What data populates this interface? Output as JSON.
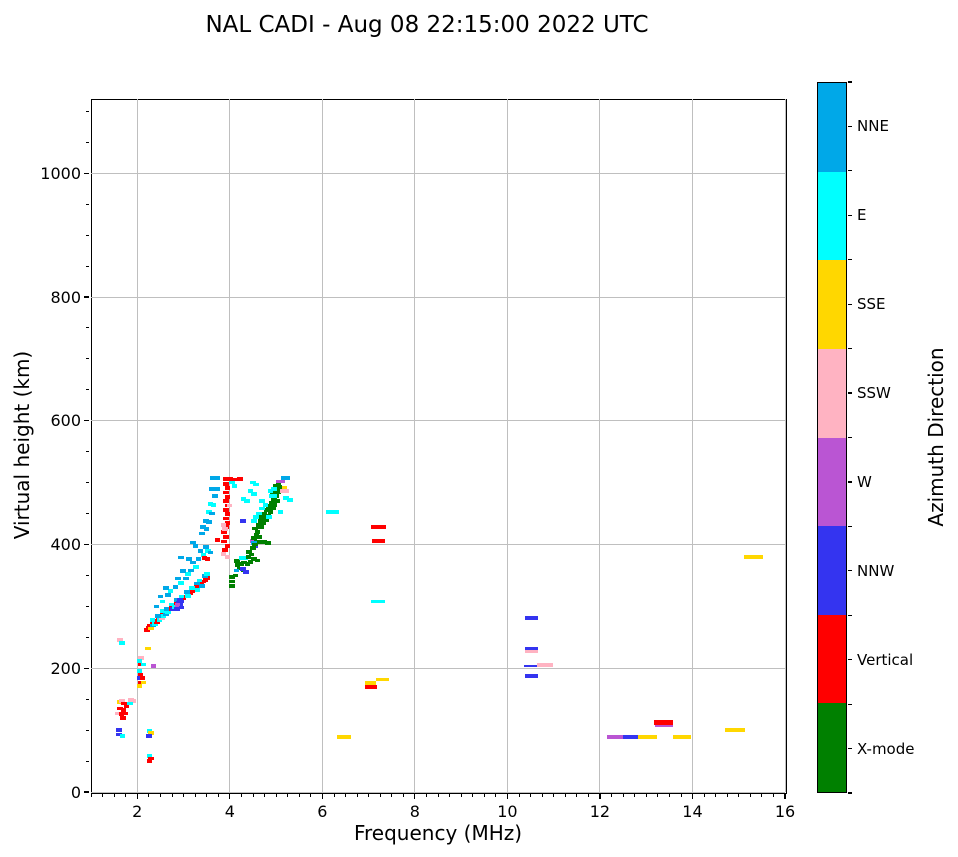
{
  "title": "NAL CADI - Aug 08 22:15:00 2022 UTC",
  "chart_data": {
    "type": "scatter",
    "title": "NAL CADI - Aug 08 22:15:00 2022 UTC",
    "xlabel": "Frequency (MHz)",
    "ylabel": "Virtual height (km)",
    "xlim": [
      1,
      16
    ],
    "ylim": [
      0,
      1120
    ],
    "xticks": [
      2,
      4,
      6,
      8,
      10,
      12,
      14,
      16
    ],
    "yticks": [
      0,
      200,
      400,
      600,
      800,
      1000
    ],
    "x_minor_step": 0.25,
    "y_minor_step": 50,
    "grid": true,
    "legend_position": "right-colorbar",
    "colorbar": {
      "label": "Azimuth Direction",
      "categories": [
        {
          "label": "NNE",
          "color": "#00A8E8"
        },
        {
          "label": "E",
          "color": "#00FFFF"
        },
        {
          "label": "SSE",
          "color": "#FFD700"
        },
        {
          "label": "SSW",
          "color": "#FFB3C2"
        },
        {
          "label": "W",
          "color": "#BA55D3"
        },
        {
          "label": "NNW",
          "color": "#3434F0"
        },
        {
          "label": "Vertical",
          "color": "#FF0000"
        },
        {
          "label": "X-mode",
          "color": "#008000"
        }
      ]
    },
    "marker": {
      "default_width_mhz": 0.12,
      "default_height_km": 6
    },
    "point_format": "[freq_MHz, virtual_height_km, category_index, optional_width_MHz, optional_height_km]",
    "points": [
      [
        1.63,
        246,
        3
      ],
      [
        1.67,
        241,
        1
      ],
      [
        1.6,
        100,
        5
      ],
      [
        1.6,
        93,
        5
      ],
      [
        1.68,
        91,
        1
      ],
      [
        2.08,
        217,
        3
      ],
      [
        2.35,
        204,
        4
      ],
      [
        2.23,
        232,
        2
      ],
      [
        2.05,
        212,
        1
      ],
      [
        2.07,
        206,
        6
      ],
      [
        2.13,
        206,
        1
      ],
      [
        2.05,
        196,
        1
      ],
      [
        2.07,
        190,
        6
      ],
      [
        2.05,
        184,
        5
      ],
      [
        2.11,
        184,
        6
      ],
      [
        2.07,
        177,
        6
      ],
      [
        2.13,
        177,
        2
      ],
      [
        2.05,
        171,
        2
      ],
      [
        1.86,
        149,
        3
      ],
      [
        1.92,
        147,
        3
      ],
      [
        1.62,
        145,
        2
      ],
      [
        1.67,
        147,
        3
      ],
      [
        1.71,
        143,
        6
      ],
      [
        1.77,
        139,
        6
      ],
      [
        1.84,
        143,
        1
      ],
      [
        1.63,
        135,
        6
      ],
      [
        1.7,
        132,
        6
      ],
      [
        1.58,
        127,
        3
      ],
      [
        1.66,
        126,
        6
      ],
      [
        1.73,
        127,
        6
      ],
      [
        1.69,
        120,
        6
      ],
      [
        2.26,
        99,
        1
      ],
      [
        2.3,
        95,
        2
      ],
      [
        2.25,
        91,
        5
      ],
      [
        2.26,
        58,
        1
      ],
      [
        2.26,
        50,
        6
      ],
      [
        2.3,
        54,
        6
      ],
      [
        2.21,
        262,
        6
      ],
      [
        2.24,
        266,
        6
      ],
      [
        2.28,
        268,
        6
      ],
      [
        2.33,
        271,
        6
      ],
      [
        2.3,
        264,
        2
      ],
      [
        2.37,
        274,
        6
      ],
      [
        2.34,
        269,
        0
      ],
      [
        2.42,
        277,
        6
      ],
      [
        2.38,
        272,
        1
      ],
      [
        2.47,
        280,
        6
      ],
      [
        2.43,
        275,
        6
      ],
      [
        2.52,
        283,
        6
      ],
      [
        2.48,
        278,
        1
      ],
      [
        2.56,
        286,
        6
      ],
      [
        2.53,
        281,
        3
      ],
      [
        2.61,
        289,
        6
      ],
      [
        2.57,
        284,
        1
      ],
      [
        2.66,
        292,
        6
      ],
      [
        2.62,
        287,
        0
      ],
      [
        2.71,
        295,
        6
      ],
      [
        2.75,
        298,
        6
      ],
      [
        2.67,
        290,
        1
      ],
      [
        2.8,
        301,
        6
      ],
      [
        2.76,
        296,
        5
      ],
      [
        2.85,
        304,
        6
      ],
      [
        2.9,
        307,
        6
      ],
      [
        2.81,
        299,
        1
      ],
      [
        2.95,
        310,
        6
      ],
      [
        3.0,
        313,
        6
      ],
      [
        2.91,
        302,
        0
      ],
      [
        3.05,
        316,
        6
      ],
      [
        3.09,
        319,
        6
      ],
      [
        3.14,
        322,
        6
      ],
      [
        3.1,
        317,
        1
      ],
      [
        3.19,
        325,
        6
      ],
      [
        3.24,
        328,
        6
      ],
      [
        3.28,
        331,
        6
      ],
      [
        3.33,
        334,
        6
      ],
      [
        3.38,
        337,
        6
      ],
      [
        3.42,
        340,
        6
      ],
      [
        3.3,
        327,
        1
      ],
      [
        3.47,
        343,
        6
      ],
      [
        3.52,
        346,
        6
      ],
      [
        3.4,
        333,
        0
      ],
      [
        2.33,
        278,
        1
      ],
      [
        2.45,
        284,
        0
      ],
      [
        2.56,
        292,
        1
      ],
      [
        2.63,
        296,
        0
      ],
      [
        2.74,
        303,
        1
      ],
      [
        2.85,
        310,
        0
      ],
      [
        2.96,
        316,
        1
      ],
      [
        3.07,
        323,
        0
      ],
      [
        3.18,
        330,
        1
      ],
      [
        3.29,
        337,
        0
      ],
      [
        3.35,
        342,
        1
      ],
      [
        3.46,
        349,
        0
      ],
      [
        3.51,
        352,
        1
      ],
      [
        2.86,
        296,
        5
      ],
      [
        2.9,
        299,
        5
      ],
      [
        2.93,
        302,
        5
      ],
      [
        2.89,
        305,
        5
      ],
      [
        2.95,
        308,
        5
      ],
      [
        2.92,
        311,
        5
      ],
      [
        2.87,
        302,
        4
      ],
      [
        2.96,
        298,
        5
      ],
      [
        2.42,
        300,
        0
      ],
      [
        2.55,
        308,
        1
      ],
      [
        2.5,
        316,
        0
      ],
      [
        2.66,
        318,
        0
      ],
      [
        2.72,
        325,
        1
      ],
      [
        2.62,
        330,
        0
      ],
      [
        2.83,
        331,
        0
      ],
      [
        2.94,
        338,
        1
      ],
      [
        2.88,
        345,
        0
      ],
      [
        3.05,
        345,
        0
      ],
      [
        3.1,
        352,
        1
      ],
      [
        2.99,
        357,
        0
      ],
      [
        3.16,
        358,
        0
      ],
      [
        3.27,
        364,
        1
      ],
      [
        3.21,
        371,
        0
      ],
      [
        3.32,
        377,
        0
      ],
      [
        3.43,
        383,
        1
      ],
      [
        3.37,
        390,
        0
      ],
      [
        3.48,
        396,
        0
      ],
      [
        3.2,
        403,
        0
      ],
      [
        3.26,
        398,
        0
      ],
      [
        3.53,
        390,
        1
      ],
      [
        3.58,
        387,
        0
      ],
      [
        2.95,
        379,
        0
      ],
      [
        3.12,
        376,
        0
      ],
      [
        3.73,
        407,
        6
      ],
      [
        3.45,
        378,
        6
      ],
      [
        3.52,
        376,
        6
      ],
      [
        3.62,
        490,
        0
      ],
      [
        3.72,
        490,
        0
      ],
      [
        3.58,
        466,
        1
      ],
      [
        3.65,
        464,
        1
      ],
      [
        3.55,
        452,
        1
      ],
      [
        3.62,
        450,
        0
      ],
      [
        3.48,
        438,
        0
      ],
      [
        3.55,
        436,
        0
      ],
      [
        3.42,
        428,
        0
      ],
      [
        3.5,
        425,
        0
      ],
      [
        3.68,
        478,
        0
      ],
      [
        3.4,
        418,
        0
      ],
      [
        3.64,
        508,
        0
      ],
      [
        3.72,
        508,
        0
      ],
      [
        3.92,
        506,
        6
      ],
      [
        4.0,
        506,
        6
      ],
      [
        4.12,
        505,
        6
      ],
      [
        4.22,
        506,
        6
      ],
      [
        3.92,
        498,
        6
      ],
      [
        3.95,
        491,
        6
      ],
      [
        3.92,
        484,
        6
      ],
      [
        3.95,
        477,
        6
      ],
      [
        3.92,
        470,
        6
      ],
      [
        3.95,
        463,
        6
      ],
      [
        3.92,
        456,
        6
      ],
      [
        3.95,
        449,
        6
      ],
      [
        3.92,
        442,
        6
      ],
      [
        3.95,
        435,
        6
      ],
      [
        3.92,
        428,
        6
      ],
      [
        3.88,
        420,
        6
      ],
      [
        3.92,
        412,
        6
      ],
      [
        3.88,
        405,
        6
      ],
      [
        3.95,
        398,
        6
      ],
      [
        3.9,
        391,
        6
      ],
      [
        3.99,
        463,
        3
      ],
      [
        3.86,
        432,
        3
      ],
      [
        3.9,
        425,
        3
      ],
      [
        3.86,
        385,
        3
      ],
      [
        3.95,
        380,
        3
      ],
      [
        4.05,
        500,
        1
      ],
      [
        4.1,
        494,
        1
      ],
      [
        4.3,
        473,
        1
      ],
      [
        4.37,
        470,
        1
      ],
      [
        4.05,
        333,
        7
      ],
      [
        4.05,
        340,
        7
      ],
      [
        4.05,
        347,
        7
      ],
      [
        4.12,
        350,
        7
      ],
      [
        4.17,
        367,
        7
      ],
      [
        4.24,
        369,
        7
      ],
      [
        4.31,
        371,
        7
      ],
      [
        4.38,
        368,
        7
      ],
      [
        4.22,
        361,
        7
      ],
      [
        4.3,
        358,
        7
      ],
      [
        4.45,
        372,
        7
      ],
      [
        4.15,
        373,
        7
      ],
      [
        4.14,
        358,
        0
      ],
      [
        4.28,
        360,
        5
      ],
      [
        4.35,
        356,
        5
      ],
      [
        4.25,
        378,
        1
      ],
      [
        4.33,
        378,
        1
      ],
      [
        4.52,
        376,
        7
      ],
      [
        4.6,
        374,
        7
      ],
      [
        4.4,
        380,
        7
      ],
      [
        4.47,
        384,
        7
      ],
      [
        4.42,
        388,
        7
      ],
      [
        4.49,
        406,
        4
      ],
      [
        4.58,
        404,
        7
      ],
      [
        4.66,
        404,
        7
      ],
      [
        4.74,
        404,
        7
      ],
      [
        4.82,
        402,
        7
      ],
      [
        4.52,
        402,
        0
      ],
      [
        4.54,
        398,
        5
      ],
      [
        4.28,
        438,
        5
      ],
      [
        4.5,
        394,
        7
      ],
      [
        4.55,
        400,
        7
      ],
      [
        4.52,
        410,
        7
      ],
      [
        4.58,
        415,
        7
      ],
      [
        4.63,
        412,
        7
      ],
      [
        4.6,
        420,
        7
      ],
      [
        4.55,
        426,
        7
      ],
      [
        4.62,
        432,
        7
      ],
      [
        4.68,
        428,
        7
      ],
      [
        4.66,
        438,
        7
      ],
      [
        4.73,
        434,
        7
      ],
      [
        4.7,
        444,
        7
      ],
      [
        4.78,
        440,
        7
      ],
      [
        4.75,
        450,
        7
      ],
      [
        4.83,
        446,
        7
      ],
      [
        4.8,
        456,
        7
      ],
      [
        4.88,
        452,
        7
      ],
      [
        4.85,
        462,
        7
      ],
      [
        4.93,
        458,
        7
      ],
      [
        4.9,
        468,
        7
      ],
      [
        4.97,
        464,
        7
      ],
      [
        4.95,
        474,
        7
      ],
      [
        5.02,
        470,
        7
      ],
      [
        5.0,
        478,
        7
      ],
      [
        4.93,
        482,
        7
      ],
      [
        5.05,
        484,
        7
      ],
      [
        4.98,
        488,
        7
      ],
      [
        5.07,
        490,
        7
      ],
      [
        5.0,
        494,
        7
      ],
      [
        5.05,
        498,
        7
      ],
      [
        4.57,
        444,
        1
      ],
      [
        4.63,
        450,
        1
      ],
      [
        4.7,
        458,
        1
      ],
      [
        4.52,
        438,
        1
      ],
      [
        4.77,
        464,
        1
      ],
      [
        4.7,
        470,
        1
      ],
      [
        4.52,
        482,
        1
      ],
      [
        4.45,
        486,
        1
      ],
      [
        4.57,
        497,
        1
      ],
      [
        4.5,
        500,
        1
      ],
      [
        4.9,
        478,
        1
      ],
      [
        4.97,
        478,
        1
      ],
      [
        5.1,
        453,
        1
      ],
      [
        4.85,
        445,
        1
      ],
      [
        5.22,
        475,
        1
      ],
      [
        5.3,
        472,
        1
      ],
      [
        5.05,
        502,
        4
      ],
      [
        5.13,
        502,
        4
      ],
      [
        5.16,
        508,
        0
      ],
      [
        5.24,
        508,
        0
      ],
      [
        5.18,
        492,
        2
      ],
      [
        5.15,
        487,
        3
      ],
      [
        5.23,
        487,
        3
      ],
      [
        5.06,
        493,
        7
      ],
      [
        5.01,
        488,
        7
      ],
      [
        4.95,
        490,
        1
      ],
      [
        4.88,
        487,
        1
      ],
      [
        6.21,
        452,
        1,
        0.28
      ],
      [
        6.46,
        89,
        2,
        0.3
      ],
      [
        7.21,
        428,
        6,
        0.32
      ],
      [
        7.21,
        406,
        6,
        0.28
      ],
      [
        7.21,
        308,
        1,
        0.3
      ],
      [
        7.3,
        182,
        2,
        0.28
      ],
      [
        7.05,
        176,
        2,
        0.24
      ],
      [
        7.05,
        170,
        6,
        0.26
      ],
      [
        10.52,
        281,
        5,
        0.3
      ],
      [
        10.52,
        232,
        5,
        0.3
      ],
      [
        10.52,
        227,
        3,
        0.3
      ],
      [
        10.5,
        203,
        5,
        0.3,
        3
      ],
      [
        10.82,
        205,
        3,
        0.34
      ],
      [
        10.52,
        187,
        5,
        0.3
      ],
      [
        12.33,
        89,
        4,
        0.36
      ],
      [
        12.68,
        89,
        5,
        0.38
      ],
      [
        13.03,
        89,
        2,
        0.4
      ],
      [
        13.38,
        113,
        6,
        0.42,
        8
      ],
      [
        13.38,
        107,
        4,
        0.4,
        3
      ],
      [
        13.77,
        89,
        2,
        0.4
      ],
      [
        14.92,
        100,
        2,
        0.44
      ],
      [
        15.32,
        380,
        2,
        0.42
      ]
    ]
  }
}
